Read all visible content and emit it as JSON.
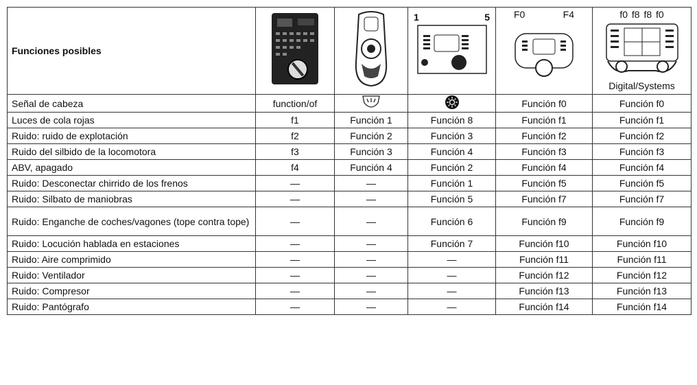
{
  "header": {
    "title": "Funciones posibles",
    "device3_left": "1",
    "device3_right": "5",
    "device4_left": "F0",
    "device4_right": "F4",
    "device5_top": "f0  f8 f8  f0",
    "device5_label": "Digital/Systems"
  },
  "rows": [
    [
      "Señal de cabeza",
      "function/of",
      "Función f0",
      "Función f0"
    ],
    [
      "Luces de cola rojas",
      "f1",
      "Función 1",
      "Función 8",
      "Función f1",
      "Función f1"
    ],
    [
      "Ruido: ruido de explotación",
      "f2",
      "Función 2",
      "Función 3",
      "Función f2",
      "Función f2"
    ],
    [
      "Ruido del silbido de la locomotora",
      "f3",
      "Función 3",
      "Función 4",
      "Función f3",
      "Función f3"
    ],
    [
      "ABV, apagado",
      "f4",
      "Función 4",
      "Función 2",
      "Función f4",
      "Función f4"
    ],
    [
      "Ruido: Desconectar chirrido de los frenos",
      "—",
      "—",
      "Función 1",
      "Función f5",
      "Función f5"
    ],
    [
      "Ruido: Silbato de maniobras",
      "—",
      "—",
      "Función 5",
      "Función f7",
      "Función f7"
    ],
    [
      "Ruido: Enganche de coches/vagones (tope contra tope)",
      "—",
      "—",
      "Función 6",
      "Función f9",
      "Función f9"
    ],
    [
      "Ruido: Locución hablada en estaciones",
      "—",
      "—",
      "Función 7",
      "Función f10",
      "Función f10"
    ],
    [
      "Ruido: Aire comprimido",
      "—",
      "—",
      "—",
      "Función f11",
      "Función f11"
    ],
    [
      "Ruido: Ventilador",
      "—",
      "—",
      "—",
      "Función f12",
      "Función f12"
    ],
    [
      "Ruido: Compresor",
      "—",
      "—",
      "—",
      "Función f13",
      "Función f13"
    ],
    [
      "Ruido: Pantógrafo",
      "—",
      "—",
      "—",
      "Función f14",
      "Función f14"
    ]
  ]
}
